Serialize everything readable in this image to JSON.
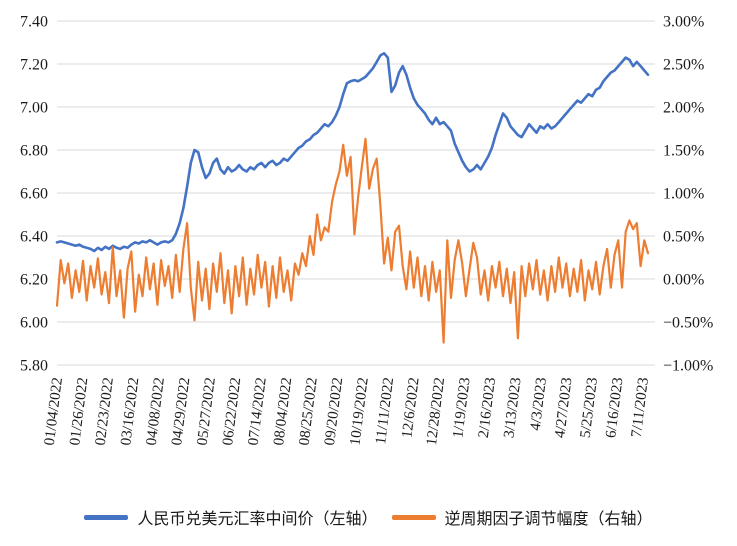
{
  "chart_data": {
    "type": "line",
    "title": "",
    "xlabel": "",
    "ylabel_left": "",
    "ylabel_right": "",
    "grid": "horizontal-only",
    "legend_position": "bottom",
    "gridline_color": "#D9D9D9",
    "text_color": "#1a1a1a",
    "x_labels": [
      "01/04/2022",
      "01/26/2022",
      "02/23/2022",
      "03/16/2022",
      "04/08/2022",
      "04/29/2022",
      "05/27/2022",
      "06/22/2022",
      "07/14/2022",
      "08/04/2022",
      "08/25/2022",
      "09/20/2022",
      "10/19/2022",
      "11/11/2022",
      "12/6/2022",
      "12/28/2022",
      "1/19/2023",
      "2/16/2023",
      "3/13/2023",
      "4/3/2023",
      "4/27/2023",
      "5/25/2023",
      "6/16/2023",
      "7/11/2023"
    ],
    "left_axis": {
      "min": 5.8,
      "max": 7.4,
      "ticks": [
        "7.40",
        "7.20",
        "7.00",
        "6.80",
        "6.60",
        "6.40",
        "6.20",
        "6.00",
        "5.80"
      ],
      "tick_values": [
        7.4,
        7.2,
        7.0,
        6.8,
        6.6,
        6.4,
        6.2,
        6.0,
        5.8
      ]
    },
    "right_axis": {
      "min": -1.0,
      "max": 3.0,
      "ticks": [
        "3.00%",
        "2.50%",
        "2.00%",
        "1.50%",
        "1.00%",
        "0.50%",
        "0.00%",
        "−0.50%",
        "−1.00%"
      ],
      "tick_values": [
        3.0,
        2.5,
        2.0,
        1.5,
        1.0,
        0.5,
        0.0,
        -0.5,
        -1.0
      ]
    },
    "series": [
      {
        "name": "人民币兑美元汇率中间价（左轴）",
        "axis": "left",
        "color": "#4472C4",
        "stroke_width": 2.6,
        "values": [
          6.37,
          6.375,
          6.37,
          6.365,
          6.36,
          6.355,
          6.36,
          6.35,
          6.345,
          6.34,
          6.33,
          6.345,
          6.335,
          6.35,
          6.34,
          6.355,
          6.345,
          6.34,
          6.35,
          6.345,
          6.36,
          6.37,
          6.365,
          6.375,
          6.37,
          6.38,
          6.37,
          6.36,
          6.37,
          6.375,
          6.37,
          6.38,
          6.41,
          6.46,
          6.53,
          6.63,
          6.74,
          6.8,
          6.79,
          6.72,
          6.67,
          6.69,
          6.74,
          6.76,
          6.71,
          6.69,
          6.72,
          6.7,
          6.71,
          6.73,
          6.71,
          6.7,
          6.72,
          6.71,
          6.73,
          6.74,
          6.72,
          6.74,
          6.75,
          6.73,
          6.74,
          6.76,
          6.75,
          6.77,
          6.79,
          6.81,
          6.82,
          6.84,
          6.85,
          6.87,
          6.88,
          6.9,
          6.92,
          6.91,
          6.93,
          6.96,
          7.0,
          7.06,
          7.11,
          7.12,
          7.125,
          7.12,
          7.13,
          7.14,
          7.16,
          7.18,
          7.21,
          7.24,
          7.25,
          7.23,
          7.07,
          7.1,
          7.16,
          7.19,
          7.15,
          7.09,
          7.04,
          7.01,
          6.99,
          6.97,
          6.94,
          6.92,
          6.95,
          6.92,
          6.93,
          6.91,
          6.89,
          6.83,
          6.79,
          6.75,
          6.72,
          6.7,
          6.71,
          6.73,
          6.71,
          6.74,
          6.77,
          6.81,
          6.87,
          6.92,
          6.97,
          6.95,
          6.91,
          6.89,
          6.87,
          6.86,
          6.89,
          6.92,
          6.9,
          6.88,
          6.91,
          6.9,
          6.92,
          6.9,
          6.91,
          6.93,
          6.95,
          6.97,
          6.99,
          7.01,
          7.03,
          7.02,
          7.04,
          7.06,
          7.05,
          7.08,
          7.09,
          7.12,
          7.14,
          7.16,
          7.17,
          7.19,
          7.21,
          7.23,
          7.22,
          7.19,
          7.21,
          7.19,
          7.17,
          7.15
        ]
      },
      {
        "name": "逆周期因子调节幅度（右轴）",
        "axis": "right",
        "color": "#ED7D31",
        "stroke_width": 2.2,
        "values": [
          -0.31,
          0.22,
          -0.05,
          0.18,
          -0.22,
          0.1,
          -0.15,
          0.21,
          -0.25,
          0.15,
          -0.1,
          0.24,
          -0.18,
          0.08,
          -0.28,
          0.37,
          -0.2,
          0.1,
          -0.45,
          0.12,
          0.32,
          -0.38,
          0.05,
          -0.2,
          0.25,
          -0.12,
          0.18,
          -0.3,
          0.22,
          -0.08,
          0.15,
          -0.22,
          0.28,
          -0.15,
          0.35,
          0.65,
          -0.1,
          -0.48,
          0.2,
          -0.25,
          0.12,
          -0.35,
          0.18,
          -0.15,
          0.3,
          -0.28,
          0.1,
          -0.4,
          0.15,
          -0.2,
          0.25,
          -0.3,
          0.12,
          -0.18,
          0.28,
          -0.1,
          0.2,
          -0.32,
          0.15,
          -0.22,
          0.25,
          -0.15,
          0.1,
          -0.25,
          0.18,
          0.05,
          0.3,
          0.15,
          0.5,
          0.28,
          0.75,
          0.45,
          0.6,
          0.55,
          0.9,
          1.1,
          1.25,
          1.56,
          1.2,
          1.42,
          0.52,
          0.95,
          1.3,
          1.63,
          1.05,
          1.28,
          1.4,
          0.85,
          0.18,
          0.48,
          0.1,
          0.55,
          0.62,
          0.15,
          -0.12,
          0.32,
          -0.1,
          0.25,
          -0.2,
          0.15,
          -0.25,
          0.2,
          -0.15,
          0.1,
          -0.74,
          0.45,
          -0.22,
          0.22,
          0.45,
          0.18,
          -0.2,
          0.12,
          0.42,
          0.25,
          -0.18,
          0.1,
          -0.25,
          0.15,
          -0.1,
          0.2,
          -0.2,
          0.12,
          -0.28,
          0.08,
          -0.69,
          0.15,
          -0.2,
          0.18,
          -0.12,
          0.22,
          -0.18,
          0.1,
          -0.25,
          0.15,
          -0.15,
          0.25,
          -0.1,
          0.18,
          -0.2,
          0.12,
          -0.15,
          0.22,
          -0.25,
          0.1,
          -0.12,
          0.2,
          -0.18,
          0.15,
          0.35,
          -0.1,
          0.28,
          0.45,
          -0.1,
          0.55,
          0.68,
          0.58,
          0.65,
          0.15,
          0.45,
          0.3
        ]
      }
    ]
  },
  "legend": {
    "items": [
      {
        "label": "人民币兑美元汇率中间价（左轴）"
      },
      {
        "label": "逆周期因子调节幅度（右轴）"
      }
    ]
  }
}
